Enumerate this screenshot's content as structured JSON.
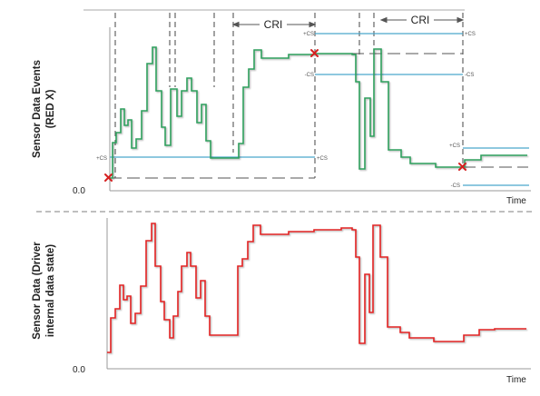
{
  "top_panel": {
    "y_label_line1": "Sensor Data Events",
    "y_label_line2": "(RED X)",
    "zero_label": "0.0",
    "x_label": "Time",
    "cri_label_1": "CRI",
    "cri_label_2": "CRI",
    "cs_labels": {
      "a_pos_left": "+CS",
      "a_pos_right": "+CS",
      "b_pos_left": "+CS",
      "b_pos_right": "+CS",
      "b_neg_left": "-CS",
      "b_neg_right": "-CS",
      "c_pos": "+CS",
      "c_neg": "-CS"
    }
  },
  "bottom_panel": {
    "y_label_line1": "Sensor Data (Driver",
    "y_label_line2": "internal data state)",
    "zero_label": "0.0",
    "x_label": "Time"
  },
  "colors": {
    "event_trace": "#2e9e5b",
    "state_trace": "#e02020",
    "cs_band": "#4aa8cc",
    "event_marker": "#d62020",
    "dashed": "#555555"
  }
}
